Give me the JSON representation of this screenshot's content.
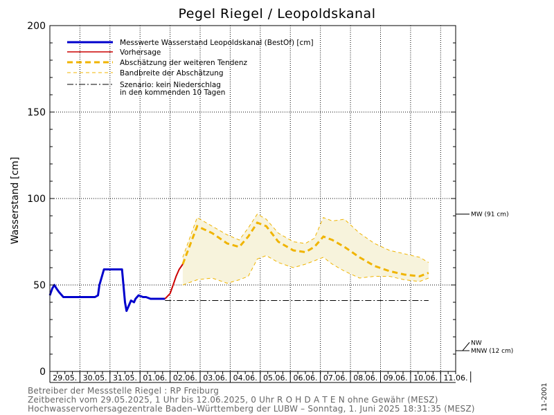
{
  "chart_data": {
    "type": "line",
    "title": "Pegel Riegel / Leopoldskanal",
    "ylabel": "Wasserstand [cm]",
    "ylim": [
      0,
      200
    ],
    "yticks": [
      0,
      50,
      100,
      150,
      200
    ],
    "x_range_days": [
      0,
      13.5
    ],
    "categories": [
      "29.05.",
      "30.05.",
      "31.05.",
      "01.06.",
      "02.06.",
      "03.06.",
      "04.06.",
      "05.06.",
      "06.06.",
      "07.06.",
      "08.06.",
      "09.06.",
      "10.06.",
      "11.06."
    ],
    "grid": true,
    "reference_lines": [
      {
        "label": "MW (91 cm)",
        "value": 91
      },
      {
        "label": "NW",
        "value": 15
      },
      {
        "label": "MNW (12 cm)",
        "value": 12
      }
    ],
    "legend": [
      {
        "label": "Messwerte Wasserstand Leopoldskanal  (BestOf)  [cm]",
        "style": "measured"
      },
      {
        "label": "Vorhersage",
        "style": "forecast"
      },
      {
        "label": "Abschätzung der weiteren Tendenz",
        "style": "trend"
      },
      {
        "label": "Bandbreite der Abschätzung",
        "style": "band"
      },
      {
        "label": "Szenario: kein Niederschlag",
        "label2": "in den kommenden 10 Tagen",
        "style": "scenario"
      }
    ],
    "series": [
      {
        "name": "Messwerte",
        "x": [
          0,
          0.08,
          0.15,
          0.22,
          0.3,
          0.45,
          0.7,
          1.0,
          1.3,
          1.5,
          1.6,
          1.65,
          1.8,
          2.0,
          2.2,
          2.3,
          2.4,
          2.5,
          2.55,
          2.7,
          2.8,
          2.85,
          2.95,
          3.1,
          3.2,
          3.35,
          3.5,
          3.6,
          3.7,
          3.83
        ],
        "y": [
          44,
          48,
          50,
          48,
          46,
          43,
          43,
          43,
          43,
          43,
          44,
          50,
          59,
          59,
          59,
          59,
          59,
          40,
          35,
          41,
          40,
          42,
          44,
          43,
          43,
          42,
          42,
          42,
          42,
          42
        ]
      },
      {
        "name": "Vorhersage",
        "x": [
          3.83,
          4.0,
          4.1,
          4.2,
          4.3,
          4.42
        ],
        "y": [
          42,
          45,
          50,
          55,
          59,
          62
        ]
      },
      {
        "name": "Abschätzung",
        "x": [
          4.42,
          4.9,
          5.4,
          5.9,
          6.3,
          6.6,
          6.9,
          7.2,
          7.6,
          8.1,
          8.5,
          8.8,
          9.1,
          9.4,
          9.8,
          10.3,
          10.8,
          11.3,
          11.8,
          12.3,
          12.6
        ],
        "y": [
          62,
          84,
          80,
          74,
          72,
          78,
          86,
          84,
          75,
          70,
          69,
          72,
          78,
          76,
          72,
          66,
          61,
          58,
          56,
          55,
          57
        ]
      },
      {
        "name": "Bandbreite oben",
        "x": [
          4.42,
          4.9,
          5.4,
          5.9,
          6.3,
          6.6,
          6.9,
          7.2,
          7.6,
          8.1,
          8.5,
          8.8,
          9.1,
          9.4,
          9.8,
          10.3,
          10.8,
          11.3,
          11.8,
          12.3,
          12.6
        ],
        "y": [
          66,
          89,
          84,
          79,
          76,
          83,
          91,
          88,
          80,
          75,
          74,
          77,
          89,
          87,
          88,
          80,
          74,
          70,
          68,
          66,
          63
        ]
      },
      {
        "name": "Bandbreite unten",
        "x": [
          4.42,
          4.9,
          5.4,
          5.9,
          6.3,
          6.6,
          6.9,
          7.2,
          7.6,
          8.1,
          8.5,
          8.8,
          9.1,
          9.4,
          9.8,
          10.3,
          10.8,
          11.3,
          11.8,
          12.3,
          12.6
        ],
        "y": [
          50,
          53,
          54,
          51,
          53,
          55,
          65,
          67,
          63,
          60,
          62,
          64,
          66,
          62,
          58,
          54,
          55,
          55,
          53,
          52,
          54
        ]
      },
      {
        "name": "Szenario",
        "x": [
          3.83,
          12.6
        ],
        "y": [
          41,
          41
        ]
      }
    ]
  },
  "footer": {
    "line1": "Betreiber der Messstelle Riegel : RP Freiburg",
    "line2": "Zeitbereich vom 29.05.2025, 1 Uhr bis 12.06.2025, 0 Uhr    R O H D A T E N ohne Gewähr (MESZ)",
    "line3": "Hochwasservorhersagezentrale Baden–Württemberg der LUBW – Sonntag, 1. Juni 2025 18:31:35 (MESZ)"
  },
  "side_code": "11-2001",
  "colors": {
    "measured": "#0000cc",
    "forecast": "#cc0000",
    "trend": "#f0b400",
    "band_line": "#f0b400",
    "band_fill": "#f7f3dc",
    "scenario": "#000000",
    "grid": "#000000"
  }
}
